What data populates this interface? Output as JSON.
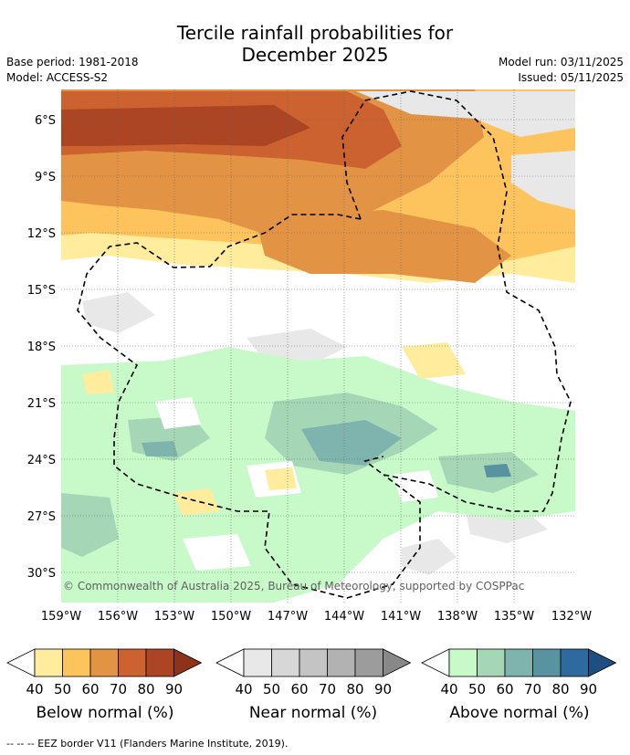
{
  "title_line1": "Tercile rainfall probabilities for",
  "title_line2": "December 2025",
  "base_period": "Base period: 1981-2018",
  "model": "Model: ACCESS-S2",
  "model_run": "Model run: 03/11/2025",
  "issued": "Issued: 05/11/2025",
  "credit": "© Commonwealth of Australia 2025, Bureau of Meteorology, supported by COSPPac",
  "lat_labels": [
    "6°S",
    "9°S",
    "12°S",
    "15°S",
    "18°S",
    "21°S",
    "24°S",
    "27°S",
    "30°S"
  ],
  "lon_labels": [
    "159°W",
    "156°W",
    "153°W",
    "150°W",
    "147°W",
    "144°W",
    "141°W",
    "138°W",
    "135°W",
    "132°W"
  ],
  "legends": [
    {
      "label": "Below normal (%)",
      "ticks": [
        "40",
        "50",
        "60",
        "70",
        "80",
        "90"
      ],
      "colors": [
        "#ffffff",
        "#ffec9c",
        "#fdc45e",
        "#e29444",
        "#cc6230",
        "#ab4524",
        "#8e331a"
      ]
    },
    {
      "label": "Near normal (%)",
      "ticks": [
        "40",
        "50",
        "60",
        "70",
        "80",
        "90"
      ],
      "colors": [
        "#ffffff",
        "#e8e8e8",
        "#d7d7d7",
        "#c4c4c4",
        "#b2b2b2",
        "#9c9c9c",
        "#888888"
      ]
    },
    {
      "label": "Above normal (%)",
      "ticks": [
        "40",
        "50",
        "60",
        "70",
        "80",
        "90"
      ],
      "colors": [
        "#ffffff",
        "#c7fac8",
        "#a5d7b6",
        "#7fb3ad",
        "#5993a0",
        "#2e6a9f",
        "#1e4f80"
      ]
    }
  ],
  "footnote": "--  --  -- EEZ border V11 (Flanders Marine Institute, 2019)."
}
